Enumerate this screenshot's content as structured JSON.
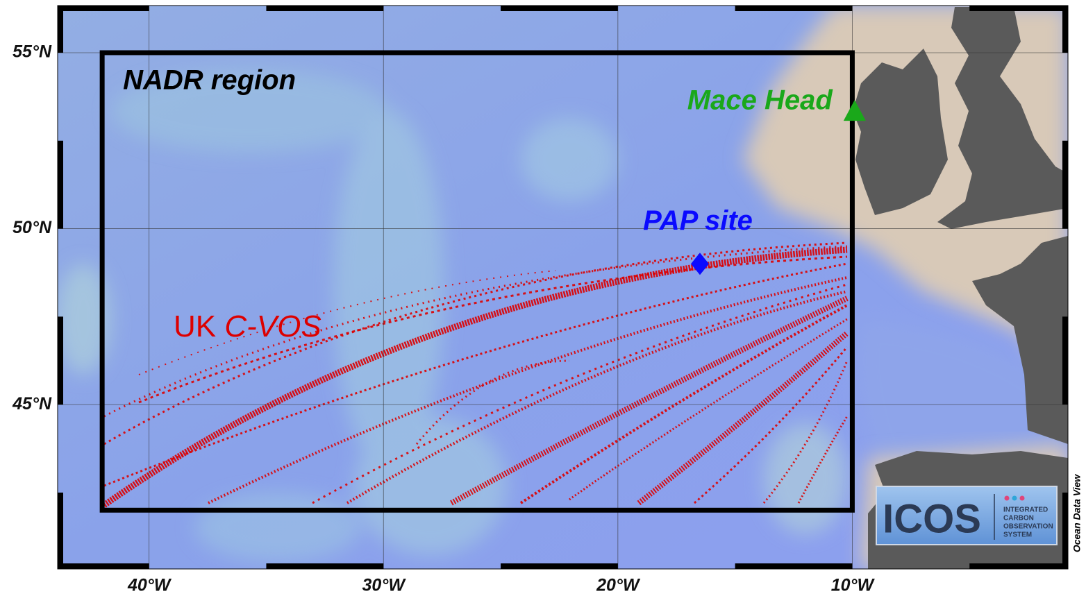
{
  "map": {
    "xlim": [
      -43.9,
      -0.8
    ],
    "ylim": [
      40.33,
      56.34
    ],
    "lon_ticks": [
      {
        "value": -40,
        "label": "40°W"
      },
      {
        "value": -30,
        "label": "30°W"
      },
      {
        "value": -20,
        "label": "20°W"
      },
      {
        "value": -10,
        "label": "10°W"
      }
    ],
    "lat_ticks": [
      {
        "value": 45,
        "label": "45°N"
      },
      {
        "value": 50,
        "label": "50°N"
      },
      {
        "value": 55,
        "label": "55°N"
      }
    ],
    "grid": true,
    "region": {
      "label": "NADR region",
      "lon": [
        -42,
        -10
      ],
      "lat": [
        42,
        55
      ]
    },
    "sites": [
      {
        "label": "Mace Head",
        "lon": -9.9,
        "lat": 53.3,
        "color": "#1aa81a",
        "marker": "triangle"
      },
      {
        "label": "PAP site",
        "lon": -16.5,
        "lat": 49.0,
        "color": "#0a0aff",
        "marker": "diamond"
      }
    ],
    "tracks": {
      "label_parts": [
        "UK",
        "C-VOS"
      ],
      "color": "#dd0000"
    },
    "credit": "Ocean Data View",
    "logo": {
      "name": "ICOS",
      "lines": [
        "INTEGRATED",
        "CARBON",
        "OBSERVATION",
        "SYSTEM"
      ]
    }
  }
}
